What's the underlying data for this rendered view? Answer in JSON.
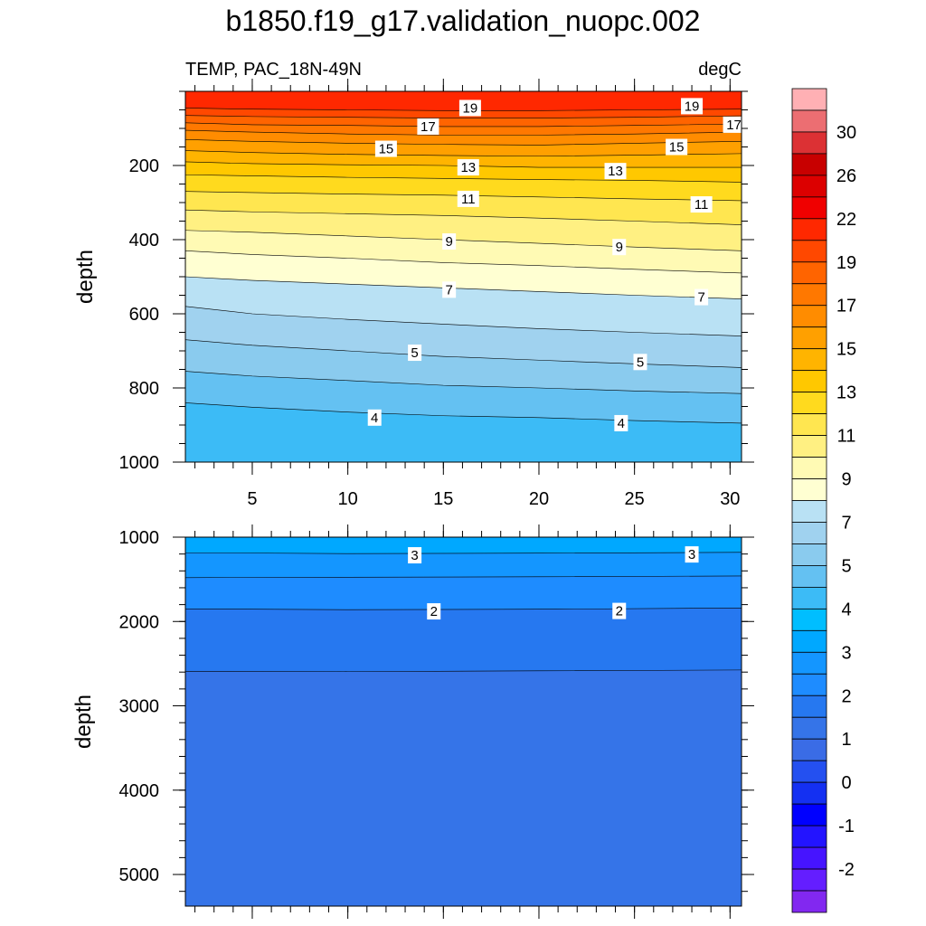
{
  "chart_data": [
    {
      "type": "contour",
      "title": "b1850.f19_g17.validation_nuopc.002",
      "left_subtitle": "TEMP, PAC_18N-49N",
      "right_subtitle": "degC",
      "ylabel": "depth",
      "xlim": [
        1.5,
        30.6
      ],
      "ylim": [
        0,
        1000
      ],
      "y_reversed": true,
      "x_ticks": [
        5,
        10,
        15,
        20,
        25,
        30
      ],
      "y_ticks": [
        200,
        400,
        600,
        800,
        1000
      ],
      "isotherms": [
        {
          "temp": 19,
          "x": [
            1.5,
            5,
            10,
            15,
            20,
            25,
            30.6
          ],
          "depth": [
            45,
            48,
            50,
            52,
            52,
            50,
            48
          ]
        },
        {
          "temp": 18,
          "x": [
            1.5,
            5,
            10,
            15,
            20,
            25,
            30.6
          ],
          "depth": [
            65,
            68,
            70,
            72,
            72,
            70,
            66
          ]
        },
        {
          "temp": 17,
          "x": [
            1.5,
            5,
            10,
            15,
            20,
            25,
            30.6
          ],
          "depth": [
            85,
            90,
            92,
            95,
            95,
            92,
            88
          ]
        },
        {
          "temp": 16,
          "x": [
            1.5,
            5,
            10,
            15,
            20,
            25,
            30.6
          ],
          "depth": [
            105,
            110,
            115,
            118,
            118,
            115,
            110
          ]
        },
        {
          "temp": 15,
          "x": [
            1.5,
            5,
            10,
            15,
            20,
            25,
            30.6
          ],
          "depth": [
            130,
            135,
            140,
            143,
            145,
            140,
            135
          ]
        },
        {
          "temp": 14,
          "x": [
            1.5,
            5,
            10,
            15,
            20,
            25,
            30.6
          ],
          "depth": [
            160,
            165,
            170,
            173,
            175,
            172,
            168
          ]
        },
        {
          "temp": 13,
          "x": [
            1.5,
            5,
            10,
            15,
            20,
            25,
            30.6
          ],
          "depth": [
            190,
            195,
            198,
            200,
            205,
            205,
            205
          ]
        },
        {
          "temp": 12,
          "x": [
            1.5,
            5,
            10,
            15,
            20,
            25,
            30.6
          ],
          "depth": [
            225,
            228,
            232,
            235,
            238,
            240,
            245
          ]
        },
        {
          "temp": 11,
          "x": [
            1.5,
            5,
            10,
            15,
            20,
            25,
            30.6
          ],
          "depth": [
            270,
            273,
            277,
            280,
            285,
            290,
            295
          ]
        },
        {
          "temp": 10,
          "x": [
            1.5,
            5,
            10,
            15,
            20,
            25,
            30.6
          ],
          "depth": [
            320,
            325,
            330,
            335,
            342,
            350,
            360
          ]
        },
        {
          "temp": 9,
          "x": [
            1.5,
            5,
            10,
            15,
            20,
            25,
            30.6
          ],
          "depth": [
            375,
            380,
            390,
            400,
            410,
            420,
            430
          ]
        },
        {
          "temp": 8,
          "x": [
            1.5,
            5,
            10,
            15,
            20,
            25,
            30.6
          ],
          "depth": [
            430,
            440,
            450,
            462,
            470,
            480,
            490
          ]
        },
        {
          "temp": 7,
          "x": [
            1.5,
            5,
            10,
            15,
            20,
            25,
            30.6
          ],
          "depth": [
            500,
            510,
            520,
            530,
            540,
            550,
            560
          ]
        },
        {
          "temp": 6,
          "x": [
            1.5,
            5,
            10,
            15,
            20,
            25,
            30.6
          ],
          "depth": [
            580,
            600,
            615,
            628,
            640,
            650,
            660
          ]
        },
        {
          "temp": 5,
          "x": [
            1.5,
            5,
            10,
            15,
            20,
            25,
            30.6
          ],
          "depth": [
            670,
            685,
            700,
            715,
            725,
            735,
            745
          ]
        },
        {
          "temp": 4.5,
          "x": [
            1.5,
            5,
            10,
            15,
            20,
            25,
            30.6
          ],
          "depth": [
            755,
            768,
            780,
            793,
            800,
            808,
            815
          ]
        },
        {
          "temp": 4,
          "x": [
            1.5,
            5,
            10,
            15,
            20,
            25,
            30.6
          ],
          "depth": [
            840,
            852,
            865,
            875,
            880,
            888,
            895
          ]
        }
      ],
      "line_labels": [
        {
          "text": "19",
          "x": 16.4,
          "depth": 45
        },
        {
          "text": "19",
          "x": 28,
          "depth": 40
        },
        {
          "text": "17",
          "x": 14.2,
          "depth": 95
        },
        {
          "text": "17",
          "x": 30.2,
          "depth": 90
        },
        {
          "text": "15",
          "x": 12,
          "depth": 155
        },
        {
          "text": "15",
          "x": 27.2,
          "depth": 150
        },
        {
          "text": "13",
          "x": 16.3,
          "depth": 205
        },
        {
          "text": "13",
          "x": 24,
          "depth": 215
        },
        {
          "text": "11",
          "x": 16.3,
          "depth": 290
        },
        {
          "text": "11",
          "x": 28.5,
          "depth": 305
        },
        {
          "text": "9",
          "x": 15.3,
          "depth": 405
        },
        {
          "text": "9",
          "x": 24.2,
          "depth": 420
        },
        {
          "text": "7",
          "x": 15.3,
          "depth": 535
        },
        {
          "text": "7",
          "x": 28.5,
          "depth": 555
        },
        {
          "text": "5",
          "x": 13.5,
          "depth": 705
        },
        {
          "text": "5",
          "x": 25.3,
          "depth": 730
        },
        {
          "text": "4",
          "x": 11.4,
          "depth": 880
        },
        {
          "text": "4",
          "x": 24.3,
          "depth": 895
        }
      ]
    },
    {
      "type": "contour",
      "ylabel": "depth",
      "xlim": [
        1.5,
        30.6
      ],
      "ylim": [
        1000,
        5375
      ],
      "y_reversed": true,
      "y_ticks": [
        1000,
        2000,
        3000,
        4000,
        5000
      ],
      "isotherms": [
        {
          "temp": 3,
          "x": [
            1.5,
            10,
            20,
            30.6
          ],
          "depth": [
            1185,
            1195,
            1190,
            1180
          ]
        },
        {
          "temp": 2.5,
          "x": [
            1.5,
            10,
            20,
            30.6
          ],
          "depth": [
            1480,
            1475,
            1470,
            1460
          ]
        },
        {
          "temp": 2,
          "x": [
            1.5,
            10,
            20,
            30.6
          ],
          "depth": [
            1850,
            1860,
            1855,
            1840
          ]
        },
        {
          "temp": 1.5,
          "x": [
            1.5,
            10,
            20,
            30.6
          ],
          "depth": [
            2590,
            2595,
            2585,
            2575
          ]
        }
      ],
      "line_labels": [
        {
          "text": "3",
          "x": 13.5,
          "depth": 1215
        },
        {
          "text": "3",
          "x": 28,
          "depth": 1205
        },
        {
          "text": "2",
          "x": 14.5,
          "depth": 1880
        },
        {
          "text": "2",
          "x": 24.2,
          "depth": 1875
        }
      ]
    }
  ],
  "colorbar": {
    "labels": [
      "30",
      "26",
      "22",
      "19",
      "17",
      "15",
      "13",
      "11",
      "9",
      "7",
      "5",
      "4",
      "3",
      "2",
      "1",
      "0",
      "-1",
      "-2"
    ],
    "colors": [
      "#ffb0b4",
      "#ec6e72",
      "#dc3134",
      "#c80000",
      "#dc0000",
      "#f00000",
      "#ff2800",
      "#ff4800",
      "#ff6400",
      "#ff7800",
      "#ff8c00",
      "#ffa000",
      "#ffb400",
      "#ffc800",
      "#ffda1e",
      "#ffe650",
      "#fff082",
      "#fffab4",
      "#ffffd2",
      "#b9e1f4",
      "#a0d2ef",
      "#8acbee",
      "#64c1f2",
      "#3cbbf6",
      "#00beff",
      "#00a8ff",
      "#1496ff",
      "#1e8cff",
      "#2678f0",
      "#3574e8",
      "#3a6ce6",
      "#2450f0",
      "#1430f2",
      "#0000ff",
      "#2314ff",
      "#4614ff",
      "#641eff",
      "#8228f0"
    ]
  },
  "fill_colors": {
    "t20": "#ff2800",
    "t19": "#ff4800",
    "t18": "#ff6400",
    "t17": "#ff7800",
    "t16": "#ff8c00",
    "t15": "#ffa000",
    "t14": "#ffb400",
    "t13": "#ffc800",
    "t12": "#ffda1e",
    "t11": "#ffe650",
    "t10": "#fff082",
    "t9": "#fffab4",
    "t8": "#ffffd2",
    "t7": "#b9e1f4",
    "t6": "#a0d2ef",
    "t5": "#8acbee",
    "t45": "#64c1f2",
    "t4": "#3cbbf6",
    "t35": "#00beff",
    "deep3": "#00a8ff",
    "deep25": "#1496ff",
    "deep2": "#1e8cff",
    "deep15": "#2678f0",
    "deep1": "#3574e8"
  }
}
